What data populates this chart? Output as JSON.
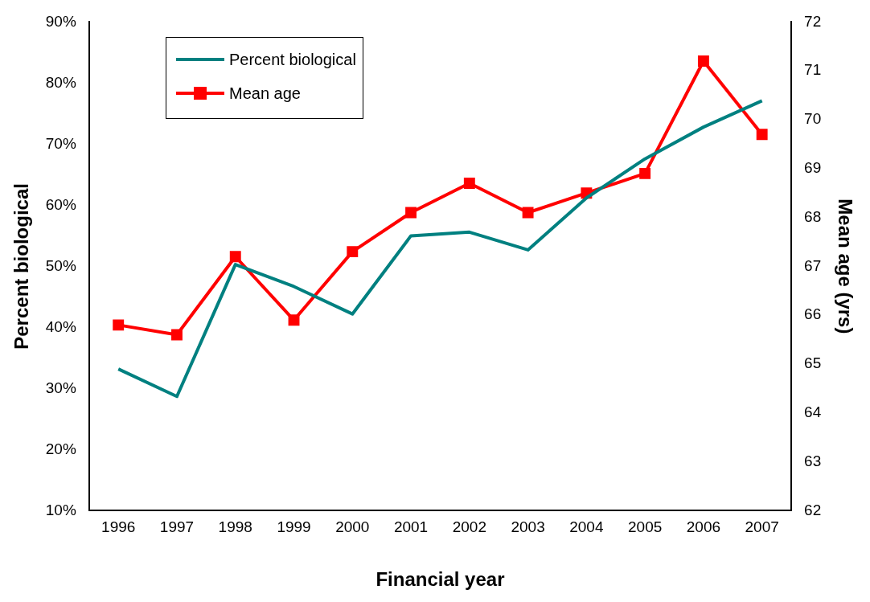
{
  "chart_data": {
    "type": "line",
    "xlabel": "Financial year",
    "ylabel": "Percent biological",
    "y2label": "Mean age (yrs)",
    "categories": [
      "1996",
      "1997",
      "1998",
      "1999",
      "2000",
      "2001",
      "2002",
      "2003",
      "2004",
      "2005",
      "2006",
      "2007"
    ],
    "series": [
      {
        "name": "Percent biological",
        "color": "#008080",
        "marker": "none",
        "values": [
          33.2,
          28.7,
          50.3,
          46.7,
          42.2,
          55,
          55.6,
          52.7,
          61.2,
          67.6,
          72.8,
          77.1
        ]
      },
      {
        "name": "Mean age",
        "color": "#ff0000",
        "marker": "square",
        "axis": "y2",
        "values": [
          65.8,
          65.6,
          67.2,
          65.9,
          67.3,
          68.1,
          68.7,
          68.1,
          68.5,
          68.9,
          71.2,
          69.7
        ]
      }
    ],
    "ylim": [
      10,
      90
    ],
    "yticks": [
      {
        "value": 10,
        "label": "10%"
      },
      {
        "value": 20,
        "label": "20%"
      },
      {
        "value": 30,
        "label": "30%"
      },
      {
        "value": 40,
        "label": "40%"
      },
      {
        "value": 50,
        "label": "50%"
      },
      {
        "value": 60,
        "label": "60%"
      },
      {
        "value": 70,
        "label": "70%"
      },
      {
        "value": 80,
        "label": "80%"
      },
      {
        "value": 90,
        "label": "90%"
      }
    ],
    "y2lim": [
      62,
      72
    ],
    "y2ticks": [
      62,
      63,
      64,
      65,
      66,
      67,
      68,
      69,
      70,
      71,
      72
    ],
    "grid": false,
    "legend": "top left"
  }
}
